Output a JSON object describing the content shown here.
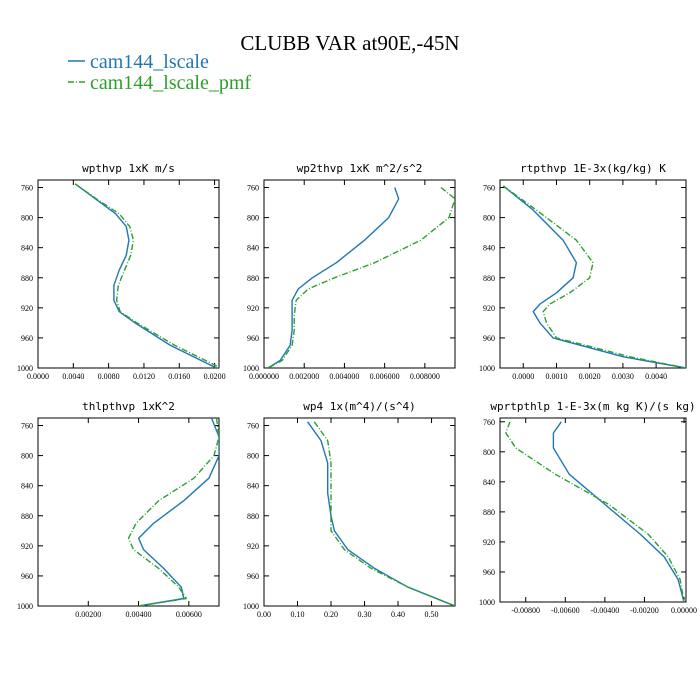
{
  "figure": {
    "title": "CLUBB VAR at90E,-45N",
    "legend": [
      {
        "name": "cam144_lscale",
        "color": "#1f77b4",
        "dash": "solid"
      },
      {
        "name": "cam144_lscale_pmf",
        "color": "#2ca02c",
        "dash": "dashdot"
      }
    ]
  },
  "chart_data": [
    {
      "type": "line",
      "title": "wpthvp  1xK m/s",
      "x_ticks": [
        "0.0000",
        "0.0040",
        "0.0080",
        "0.0120",
        "0.0160",
        "0.0200"
      ],
      "x_tick_values": [
        0,
        0.004,
        0.008,
        0.012,
        0.016,
        0.02
      ],
      "xlim": [
        0,
        0.0205
      ],
      "y_ticks": [
        "760",
        "800",
        "840",
        "880",
        "920",
        "960",
        "1000"
      ],
      "y_tick_values": [
        760,
        800,
        840,
        880,
        920,
        960,
        1000
      ],
      "ylim": [
        750,
        1000
      ],
      "y_inverted": true,
      "series": [
        {
          "name": "cam144_lscale",
          "x": [
            0.0042,
            0.0065,
            0.0088,
            0.01,
            0.0103,
            0.01,
            0.0092,
            0.0086,
            0.0086,
            0.0092,
            0.011,
            0.015,
            0.0202
          ],
          "y": [
            755,
            775,
            795,
            812,
            830,
            850,
            870,
            890,
            910,
            925,
            940,
            970,
            1000
          ]
        },
        {
          "name": "cam144_lscale_pmf",
          "x": [
            0.0042,
            0.0066,
            0.0092,
            0.0104,
            0.0108,
            0.0105,
            0.0098,
            0.0091,
            0.0089,
            0.0093,
            0.0112,
            0.0155,
            0.0207
          ],
          "y": [
            755,
            775,
            795,
            812,
            830,
            850,
            870,
            890,
            910,
            925,
            940,
            970,
            1000
          ]
        }
      ]
    },
    {
      "type": "line",
      "title": "wp2thvp  1xK m^2/s^2",
      "x_ticks": [
        "0.000000",
        "0.002000",
        "0.004000",
        "0.006000",
        "0.008000"
      ],
      "x_tick_values": [
        0,
        0.002,
        0.004,
        0.006,
        0.008
      ],
      "xlim": [
        0,
        0.0095
      ],
      "y_ticks": [
        "760",
        "800",
        "840",
        "880",
        "920",
        "960",
        "1000"
      ],
      "y_tick_values": [
        760,
        800,
        840,
        880,
        920,
        960,
        1000
      ],
      "ylim": [
        750,
        1000
      ],
      "y_inverted": true,
      "series": [
        {
          "name": "cam144_lscale",
          "x": [
            0.0065,
            0.0067,
            0.0062,
            0.005,
            0.0036,
            0.0024,
            0.0017,
            0.0014,
            0.0014,
            0.0014,
            0.0013,
            0.0008,
            0.0002
          ],
          "y": [
            760,
            775,
            800,
            830,
            860,
            880,
            895,
            910,
            930,
            950,
            970,
            990,
            1000
          ]
        },
        {
          "name": "cam144_lscale_pmf",
          "x": [
            0.0088,
            0.0095,
            0.0092,
            0.0078,
            0.0055,
            0.0035,
            0.0022,
            0.0016,
            0.0015,
            0.0015,
            0.0014,
            0.0009,
            0.0002
          ],
          "y": [
            760,
            775,
            800,
            830,
            860,
            880,
            895,
            910,
            930,
            950,
            970,
            990,
            1000
          ]
        }
      ]
    },
    {
      "type": "line",
      "title": "rtpthvp  1E-3x(kg/kg) K",
      "x_ticks": [
        "0.0000",
        "0.0010",
        "0.0020",
        "0.0030",
        "0.0040"
      ],
      "x_tick_values": [
        0,
        0.001,
        0.002,
        0.003,
        0.004
      ],
      "xlim": [
        -0.0007,
        0.0049
      ],
      "y_ticks": [
        "760",
        "800",
        "840",
        "880",
        "920",
        "960",
        "1000"
      ],
      "y_tick_values": [
        760,
        800,
        840,
        880,
        920,
        960,
        1000
      ],
      "ylim": [
        750,
        1000
      ],
      "y_inverted": true,
      "series": [
        {
          "name": "cam144_lscale",
          "x": [
            -0.0006,
            0.0003,
            0.0012,
            0.0016,
            0.0015,
            0.001,
            0.0005,
            0.0003,
            0.0005,
            0.0009,
            0.003,
            0.0049
          ],
          "y": [
            758,
            790,
            830,
            860,
            880,
            900,
            915,
            925,
            940,
            960,
            985,
            1000
          ]
        },
        {
          "name": "cam144_lscale_pmf",
          "x": [
            -0.0006,
            0.0004,
            0.0016,
            0.0021,
            0.002,
            0.0014,
            0.0008,
            0.0006,
            0.0007,
            0.001,
            0.0032,
            0.0049
          ],
          "y": [
            758,
            790,
            830,
            860,
            880,
            900,
            915,
            925,
            940,
            960,
            985,
            1000
          ]
        }
      ]
    },
    {
      "type": "line",
      "title": "thlpthvp  1xK^2",
      "x_ticks": [
        "0.00200",
        "0.00400",
        "0.00600"
      ],
      "x_tick_values": [
        0.002,
        0.004,
        0.006
      ],
      "xlim": [
        0,
        0.0072
      ],
      "y_ticks": [
        "760",
        "800",
        "840",
        "880",
        "920",
        "960",
        "1000"
      ],
      "y_tick_values": [
        760,
        800,
        840,
        880,
        920,
        960,
        1000
      ],
      "ylim": [
        750,
        1000
      ],
      "y_inverted": true,
      "series": [
        {
          "name": "cam144_lscale",
          "x": [
            0.0069,
            0.0072,
            0.0072,
            0.0068,
            0.0058,
            0.0046,
            0.004,
            0.0042,
            0.005,
            0.0057,
            0.0058,
            0.004
          ],
          "y": [
            750,
            775,
            800,
            830,
            860,
            890,
            910,
            925,
            950,
            975,
            990,
            1000
          ]
        },
        {
          "name": "cam144_lscale_pmf",
          "x": [
            0.0071,
            0.0072,
            0.007,
            0.0062,
            0.0048,
            0.0039,
            0.0036,
            0.0038,
            0.0048,
            0.0056,
            0.0059,
            0.004
          ],
          "y": [
            750,
            775,
            800,
            830,
            860,
            890,
            910,
            925,
            950,
            975,
            990,
            1000
          ]
        }
      ]
    },
    {
      "type": "line",
      "title": "wp4  1x(m^4)/(s^4)",
      "x_ticks": [
        "0.00",
        "0.10",
        "0.20",
        "0.30",
        "0.40",
        "0.50"
      ],
      "x_tick_values": [
        0,
        0.1,
        0.2,
        0.3,
        0.4,
        0.5
      ],
      "xlim": [
        0,
        0.57
      ],
      "y_ticks": [
        "760",
        "800",
        "840",
        "880",
        "920",
        "960",
        "1000"
      ],
      "y_tick_values": [
        760,
        800,
        840,
        880,
        920,
        960,
        1000
      ],
      "ylim": [
        750,
        1000
      ],
      "y_inverted": true,
      "series": [
        {
          "name": "cam144_lscale",
          "x": [
            0.13,
            0.17,
            0.19,
            0.19,
            0.2,
            0.21,
            0.25,
            0.33,
            0.43,
            0.57
          ],
          "y": [
            755,
            780,
            810,
            850,
            880,
            900,
            925,
            950,
            975,
            1000
          ]
        },
        {
          "name": "cam144_lscale_pmf",
          "x": [
            0.15,
            0.19,
            0.2,
            0.2,
            0.2,
            0.2,
            0.24,
            0.32,
            0.43,
            0.57
          ],
          "y": [
            755,
            780,
            810,
            850,
            880,
            900,
            925,
            950,
            975,
            1000
          ]
        }
      ]
    },
    {
      "type": "line",
      "title": "wprtpthlp  1-E-3x(m kg K)/(s kg)",
      "x_ticks": [
        "-0.00800",
        "-0.00600",
        "-0.00400",
        "-0.00200",
        "0.00000"
      ],
      "x_tick_values": [
        -0.008,
        -0.006,
        -0.004,
        -0.002,
        0
      ],
      "xlim": [
        -0.0093,
        0.0001
      ],
      "y_ticks": [
        "760",
        "800",
        "840",
        "880",
        "920",
        "960",
        "1000"
      ],
      "y_tick_values": [
        760,
        800,
        840,
        880,
        920,
        960,
        1000
      ],
      "ylim": [
        755,
        1000
      ],
      "y_inverted": true,
      "series": [
        {
          "name": "cam144_lscale",
          "x": [
            -0.0062,
            -0.0066,
            -0.0066,
            -0.0058,
            -0.004,
            -0.0022,
            -0.001,
            -0.0003,
            0.0
          ],
          "y": [
            760,
            775,
            795,
            830,
            870,
            910,
            940,
            970,
            1000
          ]
        },
        {
          "name": "cam144_lscale_pmf",
          "x": [
            -0.0088,
            -0.009,
            -0.0085,
            -0.0065,
            -0.0038,
            -0.0018,
            -0.0008,
            -0.0002,
            0.0
          ],
          "y": [
            760,
            775,
            795,
            830,
            870,
            910,
            940,
            970,
            1000
          ]
        }
      ]
    }
  ]
}
